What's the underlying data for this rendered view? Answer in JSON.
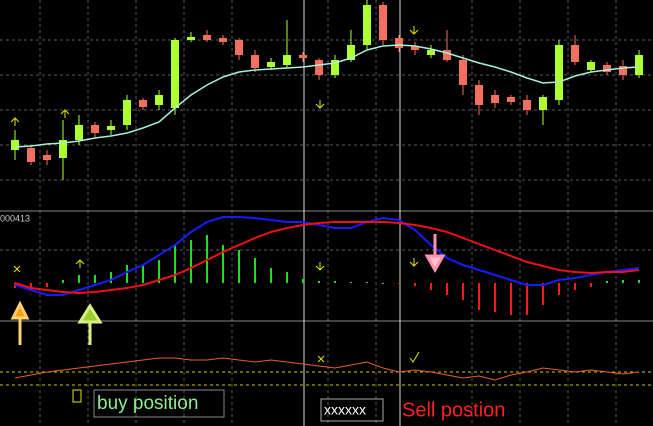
{
  "chart_data": [
    {
      "type": "candlestick",
      "categories": [
        null,
        null,
        null,
        null,
        null,
        null,
        null,
        null,
        null,
        null,
        null,
        null,
        null,
        null,
        null,
        null,
        null,
        null,
        null,
        null,
        null,
        null,
        null,
        null,
        null,
        null,
        null,
        null,
        null,
        null,
        null,
        null,
        null,
        null,
        null,
        null,
        null,
        null,
        null,
        null
      ],
      "ylim": [
        0,
        210
      ],
      "up_color": "#adff2f",
      "down_color": "#f07060",
      "ma_color": "#a8f0dc",
      "open": [
        60,
        62,
        55,
        52,
        70,
        85,
        80,
        85,
        110,
        105,
        102,
        170,
        175,
        172,
        170,
        155,
        143,
        145,
        155,
        150,
        135,
        150,
        165,
        205,
        172,
        164,
        155,
        160,
        150,
        125,
        115,
        113,
        110,
        100,
        110,
        165,
        140,
        145,
        144,
        135
      ],
      "close": [
        70,
        48,
        50,
        70,
        85,
        77,
        84,
        110,
        103,
        115,
        170,
        173,
        170,
        168,
        155,
        142,
        148,
        155,
        152,
        135,
        150,
        165,
        205,
        170,
        162,
        160,
        160,
        150,
        125,
        105,
        107,
        108,
        100,
        113,
        165,
        148,
        148,
        138,
        135,
        155
      ],
      "high": [
        80,
        65,
        60,
        90,
        95,
        88,
        90,
        115,
        112,
        120,
        172,
        178,
        180,
        175,
        172,
        160,
        152,
        190,
        158,
        152,
        155,
        180,
        210,
        208,
        175,
        168,
        165,
        180,
        155,
        130,
        120,
        115,
        115,
        115,
        170,
        175,
        150,
        148,
        150,
        160
      ],
      "low": [
        50,
        45,
        45,
        30,
        65,
        72,
        75,
        80,
        100,
        100,
        95,
        168,
        168,
        165,
        150,
        138,
        140,
        142,
        148,
        130,
        132,
        148,
        160,
        165,
        158,
        155,
        152,
        148,
        115,
        95,
        102,
        105,
        95,
        85,
        105,
        145,
        138,
        135,
        130,
        132
      ],
      "ma": [
        63,
        64,
        66,
        67,
        69,
        72,
        74,
        77,
        82,
        88,
        102,
        115,
        125,
        133,
        138,
        140,
        141,
        142,
        143,
        145,
        147,
        152,
        160,
        164,
        165,
        164,
        161,
        157,
        152,
        147,
        143,
        138,
        132,
        127,
        128,
        134,
        138,
        140,
        142,
        143
      ]
    },
    {
      "type": "macd",
      "title": "000413",
      "categories": [
        null,
        null,
        null,
        null,
        null,
        null,
        null,
        null,
        null,
        null,
        null,
        null,
        null,
        null,
        null,
        null,
        null,
        null,
        null,
        null,
        null,
        null,
        null,
        null,
        null,
        null,
        null,
        null,
        null,
        null,
        null,
        null,
        null,
        null,
        null,
        null,
        null,
        null,
        null,
        null
      ],
      "ylim": [
        -37,
        71
      ],
      "up_color": "#22dd22",
      "down_color": "#ff1a1a",
      "histogram": [
        -5,
        -6,
        -4,
        3,
        8,
        8,
        11,
        18,
        18,
        23,
        38,
        43,
        48,
        38,
        33,
        25,
        15,
        11,
        4,
        2,
        2,
        1,
        1,
        0,
        -1,
        -3,
        -7,
        -12,
        -17,
        -27,
        -29,
        -32,
        -32,
        -22,
        -12,
        -7,
        -4,
        2,
        3,
        3
      ],
      "series": [
        {
          "color": "#1a1aff",
          "values": [
            -2,
            -7,
            -12,
            -12,
            -7,
            -2,
            3,
            11,
            18,
            28,
            38,
            51,
            61,
            66,
            66,
            65,
            63,
            61,
            61,
            58,
            55,
            55,
            61,
            65,
            63,
            53,
            38,
            25,
            18,
            13,
            8,
            3,
            -2,
            -2,
            3,
            5,
            8,
            11,
            13,
            15
          ]
        },
        {
          "color": "#ee1111",
          "values": [
            0,
            -5,
            -7,
            -9,
            -10,
            -9,
            -7,
            -5,
            -2,
            3,
            8,
            15,
            23,
            31,
            38,
            45,
            51,
            55,
            58,
            60,
            61,
            61,
            61,
            61,
            60,
            58,
            55,
            51,
            45,
            39,
            33,
            27,
            21,
            17,
            13,
            11,
            10,
            11,
            11,
            13
          ]
        }
      ]
    },
    {
      "type": "line",
      "categories": [
        null,
        null,
        null,
        null,
        null,
        null,
        null,
        null,
        null,
        null,
        null,
        null,
        null,
        null,
        null,
        null,
        null,
        null,
        null,
        null,
        null,
        null,
        null,
        null,
        null,
        null,
        null,
        null,
        null,
        null,
        null,
        null,
        null,
        null,
        null,
        null,
        null,
        null,
        null,
        null
      ],
      "ylim": [
        0,
        104
      ],
      "color": "#e8622a",
      "level_color": "#c8c800",
      "levels": [
        54,
        41
      ],
      "values": [
        48,
        51,
        54,
        56,
        58,
        60,
        62,
        64,
        66,
        68,
        68,
        66,
        66,
        68,
        66,
        64,
        66,
        64,
        62,
        60,
        58,
        61,
        64,
        58,
        54,
        56,
        54,
        51,
        48,
        50,
        46,
        51,
        54,
        58,
        56,
        54,
        56,
        54,
        52,
        54
      ],
      "annotations": [
        "buy position",
        "xxxxxx",
        "Sell postion"
      ]
    }
  ]
}
